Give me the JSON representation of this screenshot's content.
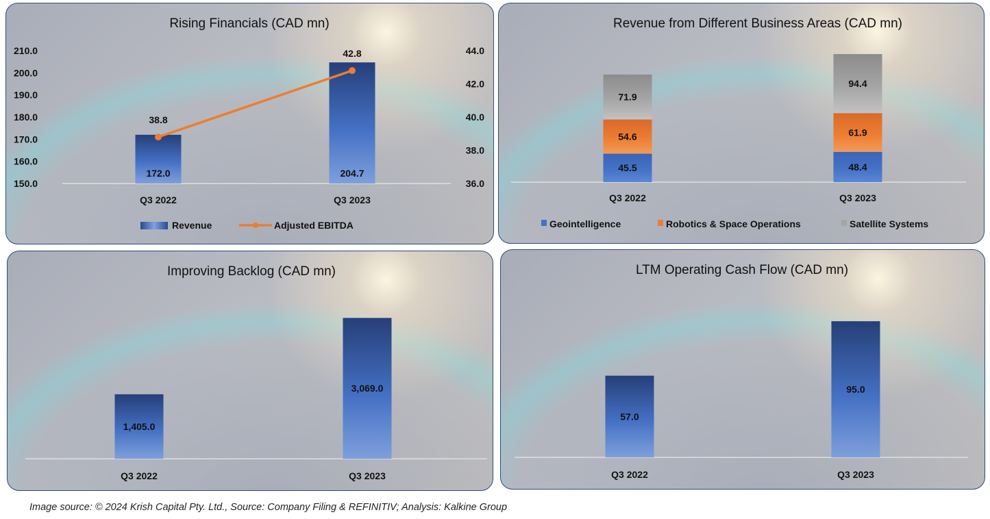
{
  "colors": {
    "bar_dark": "#2a4580",
    "bar_light": "#6f93d8",
    "line": "#ed7d31",
    "geointelligence": "#4472c4",
    "robotics": "#ed7d31",
    "satellite": "#a5a5a5",
    "axis": "#e8e8e8",
    "border": "#2f4a7a"
  },
  "footer": "Image source: © 2024 Krish Capital Pty. Ltd., Source: Company Filing & REFINITIV; Analysis: Kalkine Group",
  "chart_data": [
    {
      "type": "bar",
      "title": "Rising Financials (CAD mn)",
      "categories": [
        "Q3 2022",
        "Q3 2023"
      ],
      "series": [
        {
          "name": "Revenue",
          "type": "bar",
          "axis": "left",
          "values": [
            172.0,
            204.7
          ],
          "labels": [
            "172.0",
            "204.7"
          ]
        },
        {
          "name": "Adjusted EBITDA",
          "type": "line",
          "axis": "right",
          "values": [
            38.8,
            42.8
          ],
          "labels": [
            "38.8",
            "42.8"
          ]
        }
      ],
      "ylim": [
        150,
        210
      ],
      "yticks": [
        "150.0",
        "160.0",
        "170.0",
        "180.0",
        "190.0",
        "200.0",
        "210.0"
      ],
      "y2lim": [
        36,
        44
      ],
      "y2ticks": [
        "36.0",
        "38.0",
        "40.0",
        "42.0",
        "44.0"
      ],
      "legend": [
        "Revenue",
        "Adjusted EBITDA"
      ],
      "legend_position": "bottom",
      "grid": false
    },
    {
      "type": "bar",
      "stacked": true,
      "title": "Revenue from Different Business Areas (CAD mn)",
      "categories": [
        "Q3 2022",
        "Q3 2023"
      ],
      "series": [
        {
          "name": "Geointelligence",
          "values": [
            45.5,
            48.4
          ],
          "labels": [
            "45.5",
            "48.4"
          ]
        },
        {
          "name": "Robotics & Space Operations",
          "values": [
            54.6,
            61.9
          ],
          "labels": [
            "54.6",
            "61.9"
          ]
        },
        {
          "name": "Satellite Systems",
          "values": [
            71.9,
            94.4
          ],
          "labels": [
            "71.9",
            "94.4"
          ]
        }
      ],
      "ylim": [
        0,
        220
      ],
      "legend": [
        "Geointelligence",
        "Robotics & Space Operations",
        "Satellite Systems"
      ],
      "legend_position": "bottom",
      "grid": false
    },
    {
      "type": "bar",
      "title": "Improving Backlog (CAD mn)",
      "categories": [
        "Q3 2022",
        "Q3 2023"
      ],
      "values": [
        1405.0,
        3069.0
      ],
      "labels": [
        "1,405.0",
        "3,069.0"
      ],
      "ylim": [
        0,
        3850
      ],
      "grid": false
    },
    {
      "type": "bar",
      "title": "LTM Operating Cash Flow (CAD mn)",
      "categories": [
        "Q3 2022",
        "Q3 2023"
      ],
      "values": [
        57.0,
        95.0
      ],
      "labels": [
        "57.0",
        "95.0"
      ],
      "ylim": [
        0,
        118
      ],
      "grid": false
    }
  ]
}
